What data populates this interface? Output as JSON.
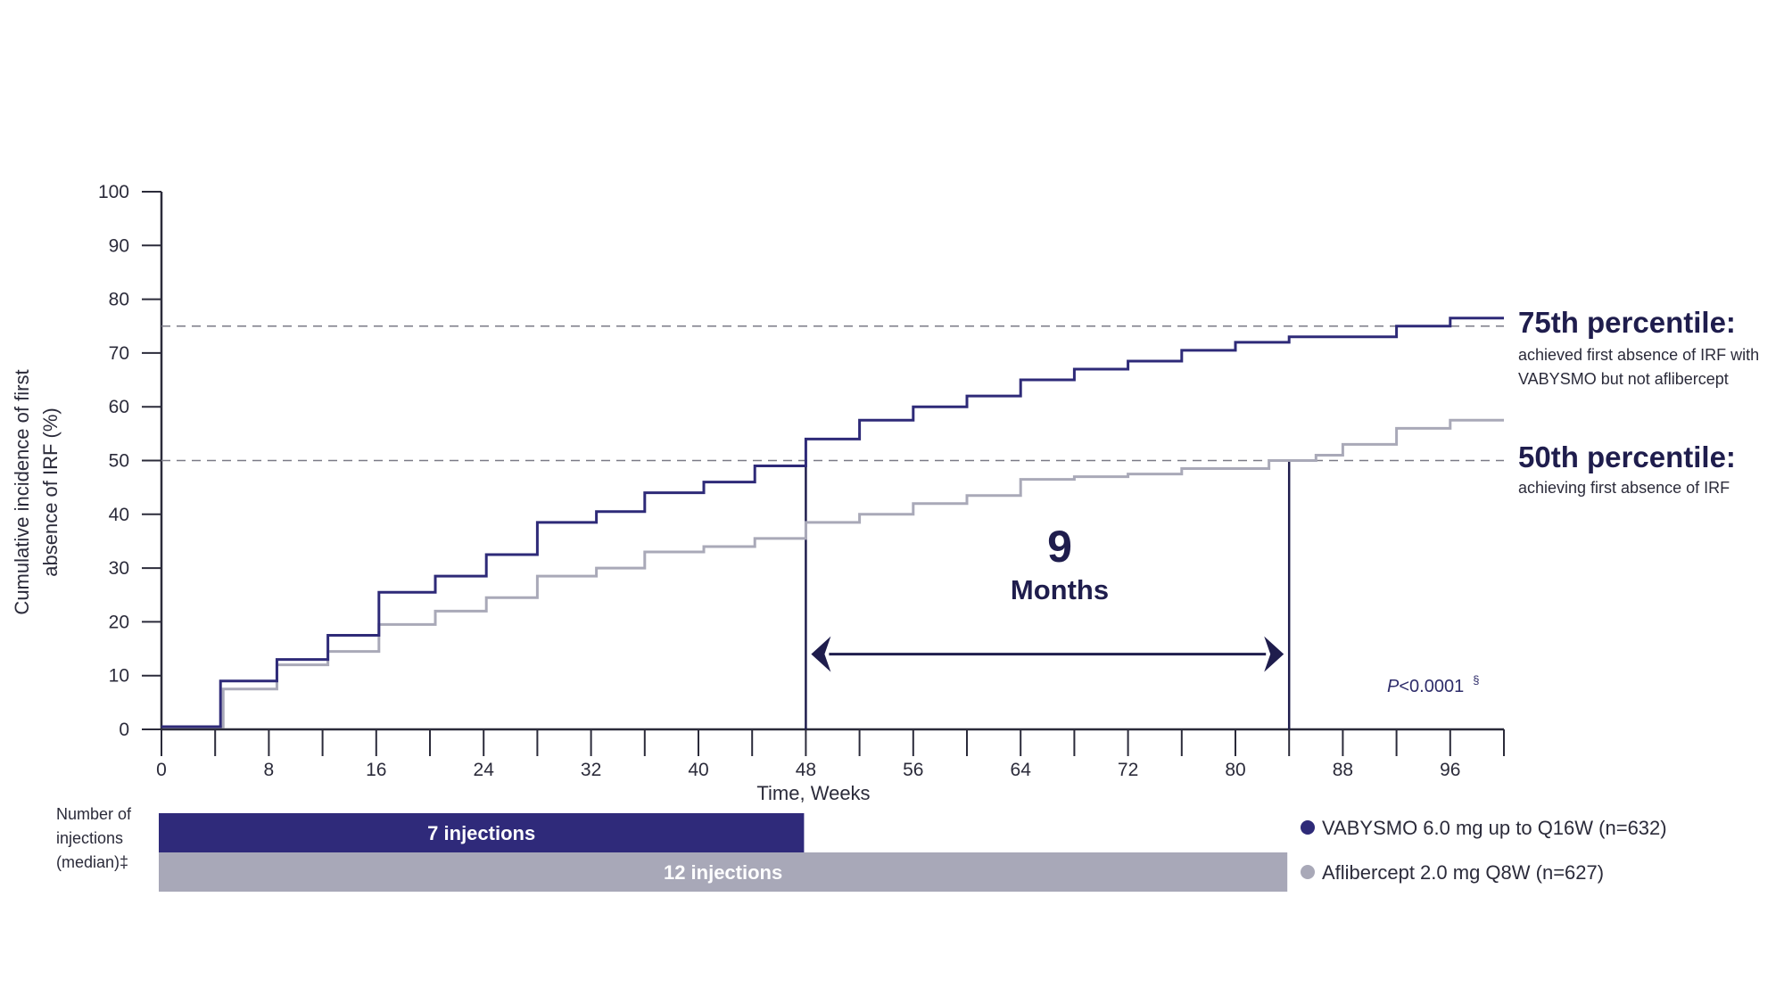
{
  "chart_data": {
    "type": "line",
    "subtype": "step",
    "title": "",
    "xlabel": "Time, Weeks",
    "ylabel_lines": [
      "Cumulative incidence of first",
      "absence of IRF (%)"
    ],
    "xlim": [
      0,
      100
    ],
    "ylim": [
      0,
      100
    ],
    "x_ticks": [
      0,
      8,
      16,
      24,
      32,
      40,
      48,
      56,
      64,
      72,
      80,
      88,
      96
    ],
    "y_ticks": [
      0,
      10,
      20,
      30,
      40,
      50,
      60,
      70,
      80,
      90,
      100
    ],
    "grid": false,
    "series": [
      {
        "name": "VABYSMO 6.0 mg up to Q16W (n=632)",
        "color": "#2e2a78",
        "points": [
          [
            0,
            0.5
          ],
          [
            4.4,
            9
          ],
          [
            8.6,
            13
          ],
          [
            12.4,
            17.5
          ],
          [
            16.2,
            25.5
          ],
          [
            20.4,
            28.5
          ],
          [
            24.2,
            32.5
          ],
          [
            28,
            38.5
          ],
          [
            32.4,
            40.5
          ],
          [
            36,
            44
          ],
          [
            40.4,
            46
          ],
          [
            44.2,
            49
          ],
          [
            48,
            54
          ],
          [
            52,
            57.5
          ],
          [
            56,
            60
          ],
          [
            60,
            62
          ],
          [
            64,
            65
          ],
          [
            68,
            67
          ],
          [
            72,
            68.5
          ],
          [
            76,
            70.5
          ],
          [
            80,
            72
          ],
          [
            84,
            73
          ],
          [
            92,
            75
          ],
          [
            96,
            76.5
          ],
          [
            100,
            76.5
          ]
        ]
      },
      {
        "name": "Aflibercept 2.0 mg Q8W (n=627)",
        "color": "#a9a9b8",
        "points": [
          [
            0,
            0.5
          ],
          [
            4.6,
            7.5
          ],
          [
            8.6,
            12
          ],
          [
            12.4,
            14.5
          ],
          [
            16.2,
            19.5
          ],
          [
            20.4,
            22
          ],
          [
            24.2,
            24.5
          ],
          [
            28,
            28.5
          ],
          [
            32.4,
            30
          ],
          [
            36,
            33
          ],
          [
            40.4,
            34
          ],
          [
            44.2,
            35.5
          ],
          [
            48,
            38.5
          ],
          [
            52,
            40
          ],
          [
            56,
            42
          ],
          [
            60,
            43.5
          ],
          [
            64,
            46.5
          ],
          [
            68,
            47
          ],
          [
            72,
            47.5
          ],
          [
            76,
            48.5
          ],
          [
            82.5,
            50
          ],
          [
            86,
            51
          ],
          [
            88,
            53
          ],
          [
            92,
            56
          ],
          [
            96,
            57.5
          ],
          [
            100,
            57.5
          ]
        ]
      }
    ],
    "reference_lines": [
      {
        "y": 75,
        "style": "dashed"
      },
      {
        "y": 50,
        "style": "dashed"
      }
    ],
    "markers": [
      {
        "x": 48,
        "type": "vertical"
      },
      {
        "x": 84,
        "type": "vertical"
      }
    ],
    "annotation_interval": {
      "from": 48,
      "to": 84,
      "y": 14,
      "number": "9",
      "unit": "Months"
    },
    "percentile_labels": [
      {
        "title": "75th percentile:",
        "lines": [
          "achieved first absence of IRF with",
          "VABYSMO but not aflibercept"
        ]
      },
      {
        "title": "50th percentile:",
        "lines": [
          "achieving first absence of IRF"
        ]
      }
    ],
    "p_value": {
      "italic": "P",
      "rest": "<0.0001",
      "superscript": "§"
    },
    "injection_bars": {
      "label_lines": [
        "Number of",
        "injections",
        "(median)‡"
      ],
      "bars": [
        {
          "text": "7 injections",
          "end_week": 48,
          "color": "#2f2a7a"
        },
        {
          "text": "12 injections",
          "end_week": 84,
          "color": "#a8a8b8"
        }
      ]
    },
    "legend": [
      {
        "label": "VABYSMO 6.0 mg up to Q16W (n=632)",
        "color": "#2e2a78"
      },
      {
        "label": "Aflibercept 2.0 mg Q8W (n=627)",
        "color": "#a9a9b8"
      }
    ]
  }
}
